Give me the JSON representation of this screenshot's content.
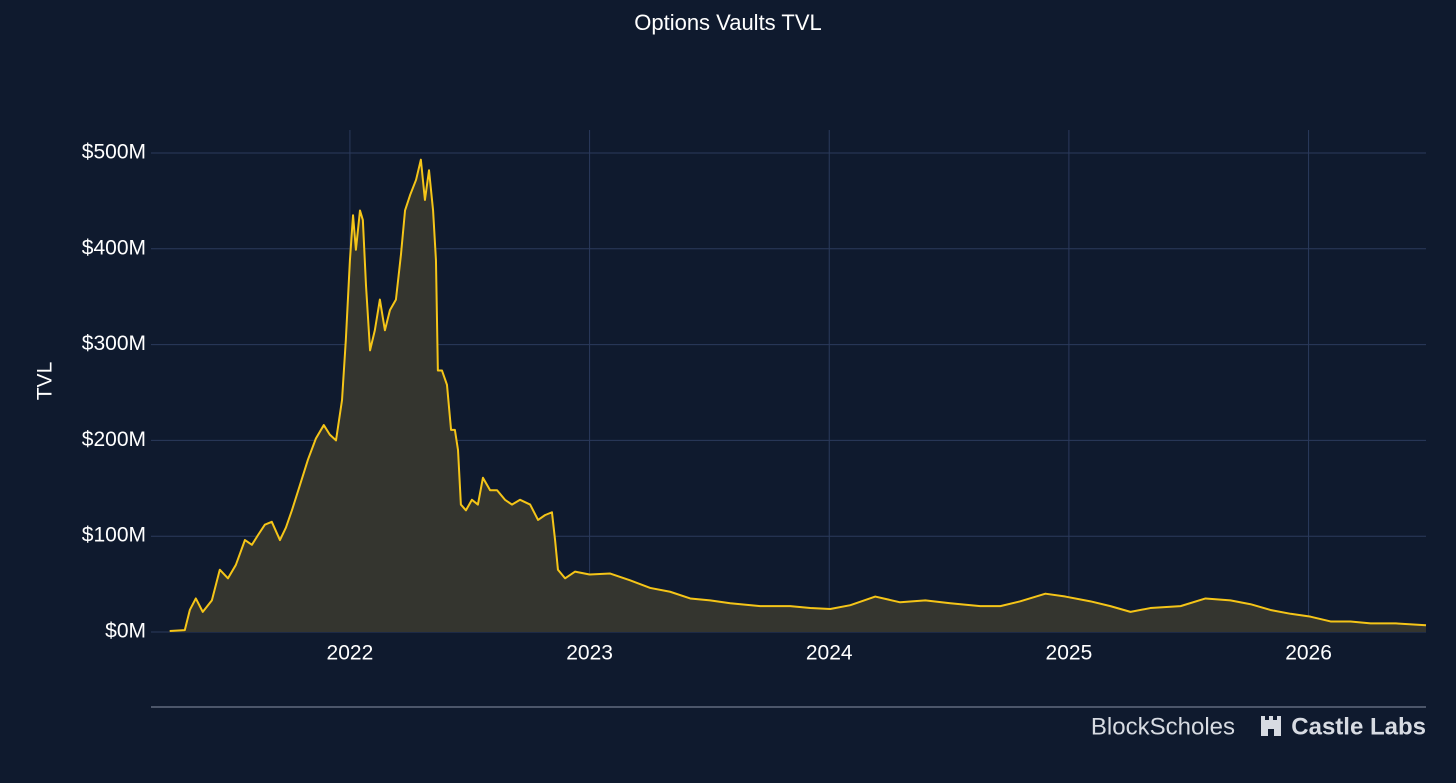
{
  "chart_data": {
    "type": "area",
    "title": "Options Vaults TVL",
    "y_label": "TVL",
    "x": [
      2021.248,
      2021.311,
      2021.332,
      2021.357,
      2021.386,
      2021.424,
      2021.457,
      2021.491,
      2021.524,
      2021.562,
      2021.591,
      2021.616,
      2021.645,
      2021.674,
      2021.708,
      2021.733,
      2021.758,
      2021.791,
      2021.825,
      2021.858,
      2021.891,
      2021.916,
      2021.942,
      2021.967,
      2021.983,
      2022.0,
      2022.013,
      2022.025,
      2022.042,
      2022.054,
      2022.067,
      2022.084,
      2022.104,
      2022.125,
      2022.146,
      2022.167,
      2022.192,
      2022.213,
      2022.23,
      2022.251,
      2022.276,
      2022.296,
      2022.313,
      2022.33,
      2022.347,
      2022.359,
      2022.367,
      2022.384,
      2022.405,
      2022.422,
      2022.438,
      2022.451,
      2022.463,
      2022.484,
      2022.509,
      2022.534,
      2022.555,
      2022.585,
      2022.614,
      2022.647,
      2022.676,
      2022.71,
      2022.752,
      2022.785,
      2022.814,
      2022.843,
      2022.856,
      2022.868,
      2022.898,
      2022.939,
      2023.0,
      2023.086,
      2023.169,
      2023.253,
      2023.336,
      2023.42,
      2023.503,
      2023.587,
      2023.712,
      2023.837,
      2023.921,
      2024.004,
      2024.088,
      2024.192,
      2024.296,
      2024.401,
      2024.505,
      2024.63,
      2024.714,
      2024.797,
      2024.902,
      2024.985,
      2025.09,
      2025.173,
      2025.257,
      2025.34,
      2025.466,
      2025.57,
      2025.674,
      2025.758,
      2025.841,
      2025.925,
      2026.008,
      2026.092,
      2026.175,
      2026.259,
      2026.363,
      2026.49
    ],
    "values": [
      1,
      2,
      23,
      35,
      21,
      33,
      65,
      56,
      70,
      96,
      91,
      101,
      112,
      115,
      96,
      109,
      127,
      153,
      180,
      202,
      216,
      206,
      200,
      242,
      305,
      388,
      435,
      399,
      440,
      430,
      362,
      294,
      315,
      347,
      315,
      336,
      347,
      394,
      440,
      456,
      472,
      493,
      451,
      482,
      440,
      388,
      273,
      273,
      258,
      211,
      211,
      190,
      133,
      127,
      138,
      133,
      161,
      148,
      148,
      138,
      133,
      138,
      133,
      117,
      122,
      125,
      96,
      65,
      56,
      63,
      60,
      61,
      54,
      46,
      42,
      35,
      33,
      30,
      27,
      27,
      25,
      24,
      28,
      37,
      31,
      33,
      30,
      27,
      27,
      32,
      40,
      37,
      32,
      27,
      21,
      25,
      27,
      35,
      33,
      29,
      23,
      19,
      16,
      11,
      11,
      9,
      9,
      7
    ],
    "color": "#f5c518",
    "fill_color": "#34352f",
    "xlim": [
      2021.17,
      2026.49
    ],
    "xticks": [
      2022,
      2023,
      2024,
      2025,
      2026
    ],
    "ylim": [
      0,
      524
    ],
    "yticks": [
      {
        "value": 0,
        "label": "$0M"
      },
      {
        "value": 100,
        "label": "$100M"
      },
      {
        "value": 200,
        "label": "$200M"
      },
      {
        "value": 300,
        "label": "$300M"
      },
      {
        "value": 400,
        "label": "$400M"
      },
      {
        "value": 500,
        "label": "$500M"
      }
    ],
    "grid": true,
    "grid_color": "#2b3a5c",
    "watermarks": [
      "BlockScholes",
      "Castle Labs"
    ]
  }
}
